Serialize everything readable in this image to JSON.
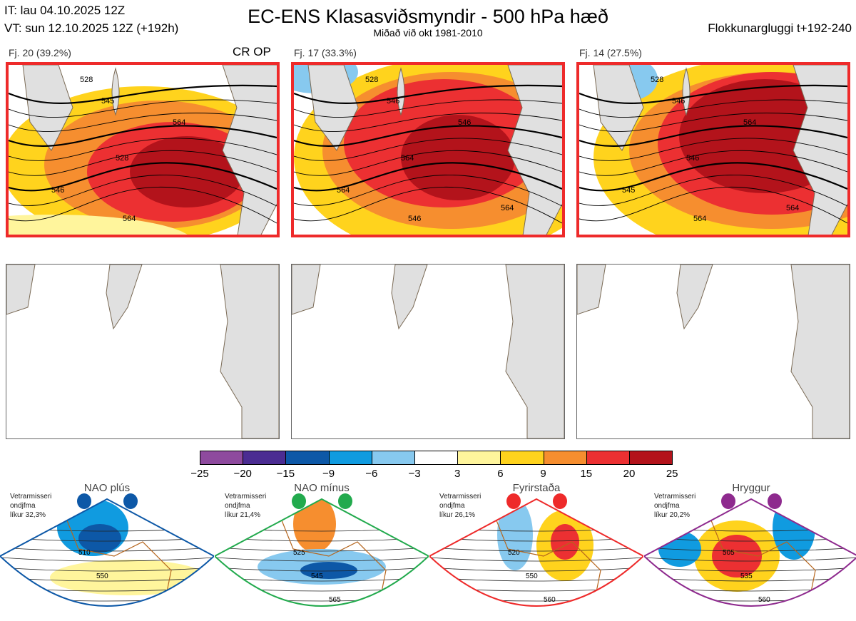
{
  "header": {
    "init_time": "IT: lau 04.10.2025 12Z",
    "valid_time": "VT: sun 12.10.2025 12Z  (+192h)",
    "title": "EC-ENS Klasasviðsmyndir - 500 hPa hæð",
    "subtitle": "Miðað við okt 1981-2010",
    "window": "Flokkunargluggi t+192-240"
  },
  "clusters": [
    {
      "label": "Fj. 20 (39.2%)",
      "tag": "CR OP",
      "contours": [
        "528",
        "545",
        "564",
        "528",
        "546",
        "564"
      ]
    },
    {
      "label": "Fj. 17 (33.3%)",
      "tag": "",
      "contours": [
        "528",
        "546",
        "546",
        "564",
        "564",
        "546",
        "564"
      ]
    },
    {
      "label": "Fj. 14 (27.5%)",
      "tag": "",
      "contours": [
        "528",
        "546",
        "564",
        "546",
        "545",
        "564",
        "564"
      ]
    }
  ],
  "colors": {
    "border": "#ee2a2a",
    "land": "#e0e0e0",
    "coast": "#7a6a55"
  },
  "chart_data": {
    "type": "heatmap",
    "title": "500 hPa height anomaly clusters",
    "colorbar": {
      "ticks": [
        "−25",
        "−20",
        "−15",
        "−9",
        "−6",
        "−3",
        "3",
        "6",
        "9",
        "15",
        "20",
        "25"
      ],
      "colors": [
        "#8e4a9e",
        "#4b2c92",
        "#0d58a7",
        "#109be0",
        "#87c9ef",
        "#ffffff",
        "#fff59c",
        "#ffd31d",
        "#f68e2f",
        "#ec3032",
        "#b3131b"
      ]
    },
    "regimes": [
      {
        "name": "NAO plús",
        "note": [
          "Vetrarmisseri",
          "ondjfma",
          "líkur 32,3%"
        ],
        "color": "#0d58a7",
        "contours": [
          "510",
          "550"
        ]
      },
      {
        "name": "NAO mínus",
        "note": [
          "Vetrarmisseri",
          "ondjfma",
          "líkur 21,4%"
        ],
        "color": "#22aa4d",
        "contours": [
          "525",
          "545",
          "565"
        ]
      },
      {
        "name": "Fyrirstaða",
        "note": [
          "Vetrarmisseri",
          "ondjfma",
          "líkur 26,1%"
        ],
        "color": "#ee2a2a",
        "contours": [
          "520",
          "550",
          "560"
        ]
      },
      {
        "name": "Hryggur",
        "note": [
          "Vetrarmisseri",
          "ondjfma",
          "líkur 20,2%"
        ],
        "color": "#8e2a8e",
        "contours": [
          "505",
          "535",
          "560"
        ]
      }
    ]
  }
}
